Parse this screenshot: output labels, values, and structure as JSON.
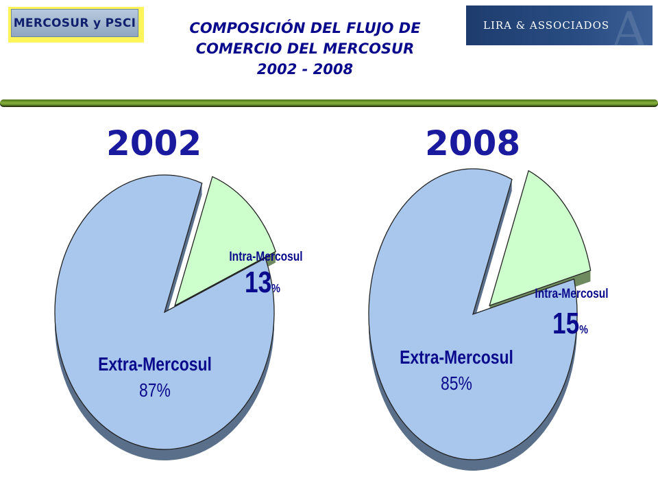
{
  "logos": {
    "left_text": "MERCOSUR y PSCI",
    "right_text": "LIRA & ASSOCIADOS"
  },
  "title_lines": [
    "COMPOSICIÓN DEL FLUJO DE",
    "COMERCIO DEL MERCOSUR",
    "2002 - 2008"
  ],
  "colors": {
    "title": "#0a0a8c",
    "year": "#1a1a9e",
    "extra_fill": "#a9c7ec",
    "extra_side": "#5a6f8a",
    "intra_fill": "#ccffcc",
    "intra_side": "#6f8a5f",
    "label": "#0a0a8c",
    "rule": "#86b33a"
  },
  "chart_data": [
    {
      "type": "pie",
      "title": "2002",
      "slices": [
        {
          "name": "Extra-Mercosul",
          "value": 87,
          "label_value": "87%"
        },
        {
          "name": "Intra-Mercosul",
          "value": 13,
          "label_value": "13%",
          "exploded": true
        }
      ]
    },
    {
      "type": "pie",
      "title": "2008",
      "slices": [
        {
          "name": "Extra-Mercosul",
          "value": 85,
          "label_value": "85%"
        },
        {
          "name": "Intra-Mercosul",
          "value": 15,
          "label_value": "15%",
          "exploded": true
        }
      ]
    }
  ]
}
